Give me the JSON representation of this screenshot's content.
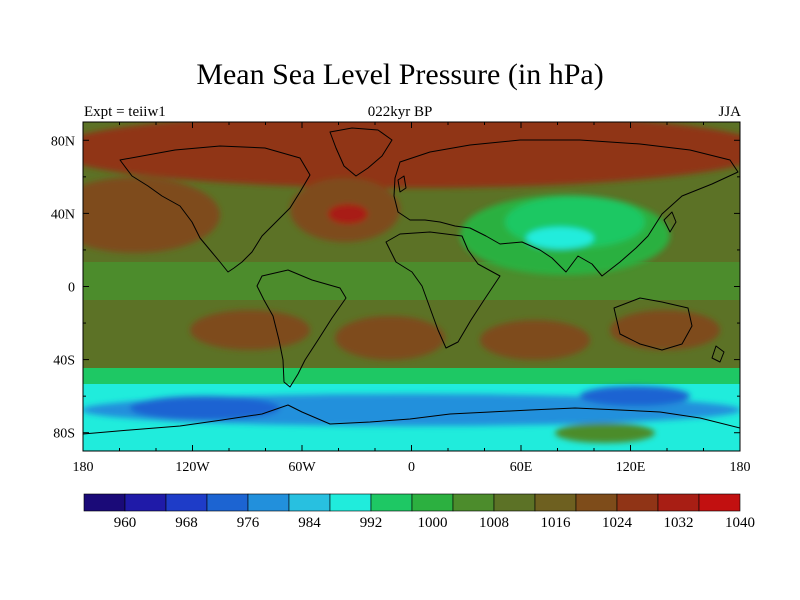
{
  "map": {
    "title": "Mean Sea Level Pressure (in hPa)",
    "center_string": "022kyr BP",
    "left_string": "Expt = teiiw1",
    "right_string": "JJA",
    "lon_tick_labels": [
      "180",
      "120W",
      "60W",
      "0",
      "60E",
      "120E",
      "180"
    ],
    "lat_tick_labels": [
      "80N",
      "40N",
      "0",
      "40S",
      "80S"
    ],
    "colorbar_labels": [
      "960",
      "968",
      "976",
      "984",
      "992",
      "1000",
      "1008",
      "1016",
      "1024",
      "1032",
      "1040"
    ],
    "colorbar_colors": [
      "#1a0a78",
      "#1f1aa8",
      "#1e3cc8",
      "#1c64d2",
      "#2290dc",
      "#28c0e0",
      "#20ecdc",
      "#1ec864",
      "#2cb040",
      "#4c8c2c",
      "#5c7226",
      "#6e6020",
      "#7e4c1a",
      "#903416",
      "#a81e14",
      "#c21010"
    ],
    "colors": {
      "ocean_mid": "#5c7226",
      "subtropical_high": "#7e4c1a",
      "high_core": "#a81e14",
      "arctic_high": "#903416",
      "tropical_low": "#4c8c2c",
      "monsoon_low": "#2cb040",
      "monsoon_core": "#1ec864",
      "heat_low_core": "#20ecdc",
      "southern_trough": "#20ecdc",
      "trough_core": "#1c64d2"
    }
  }
}
